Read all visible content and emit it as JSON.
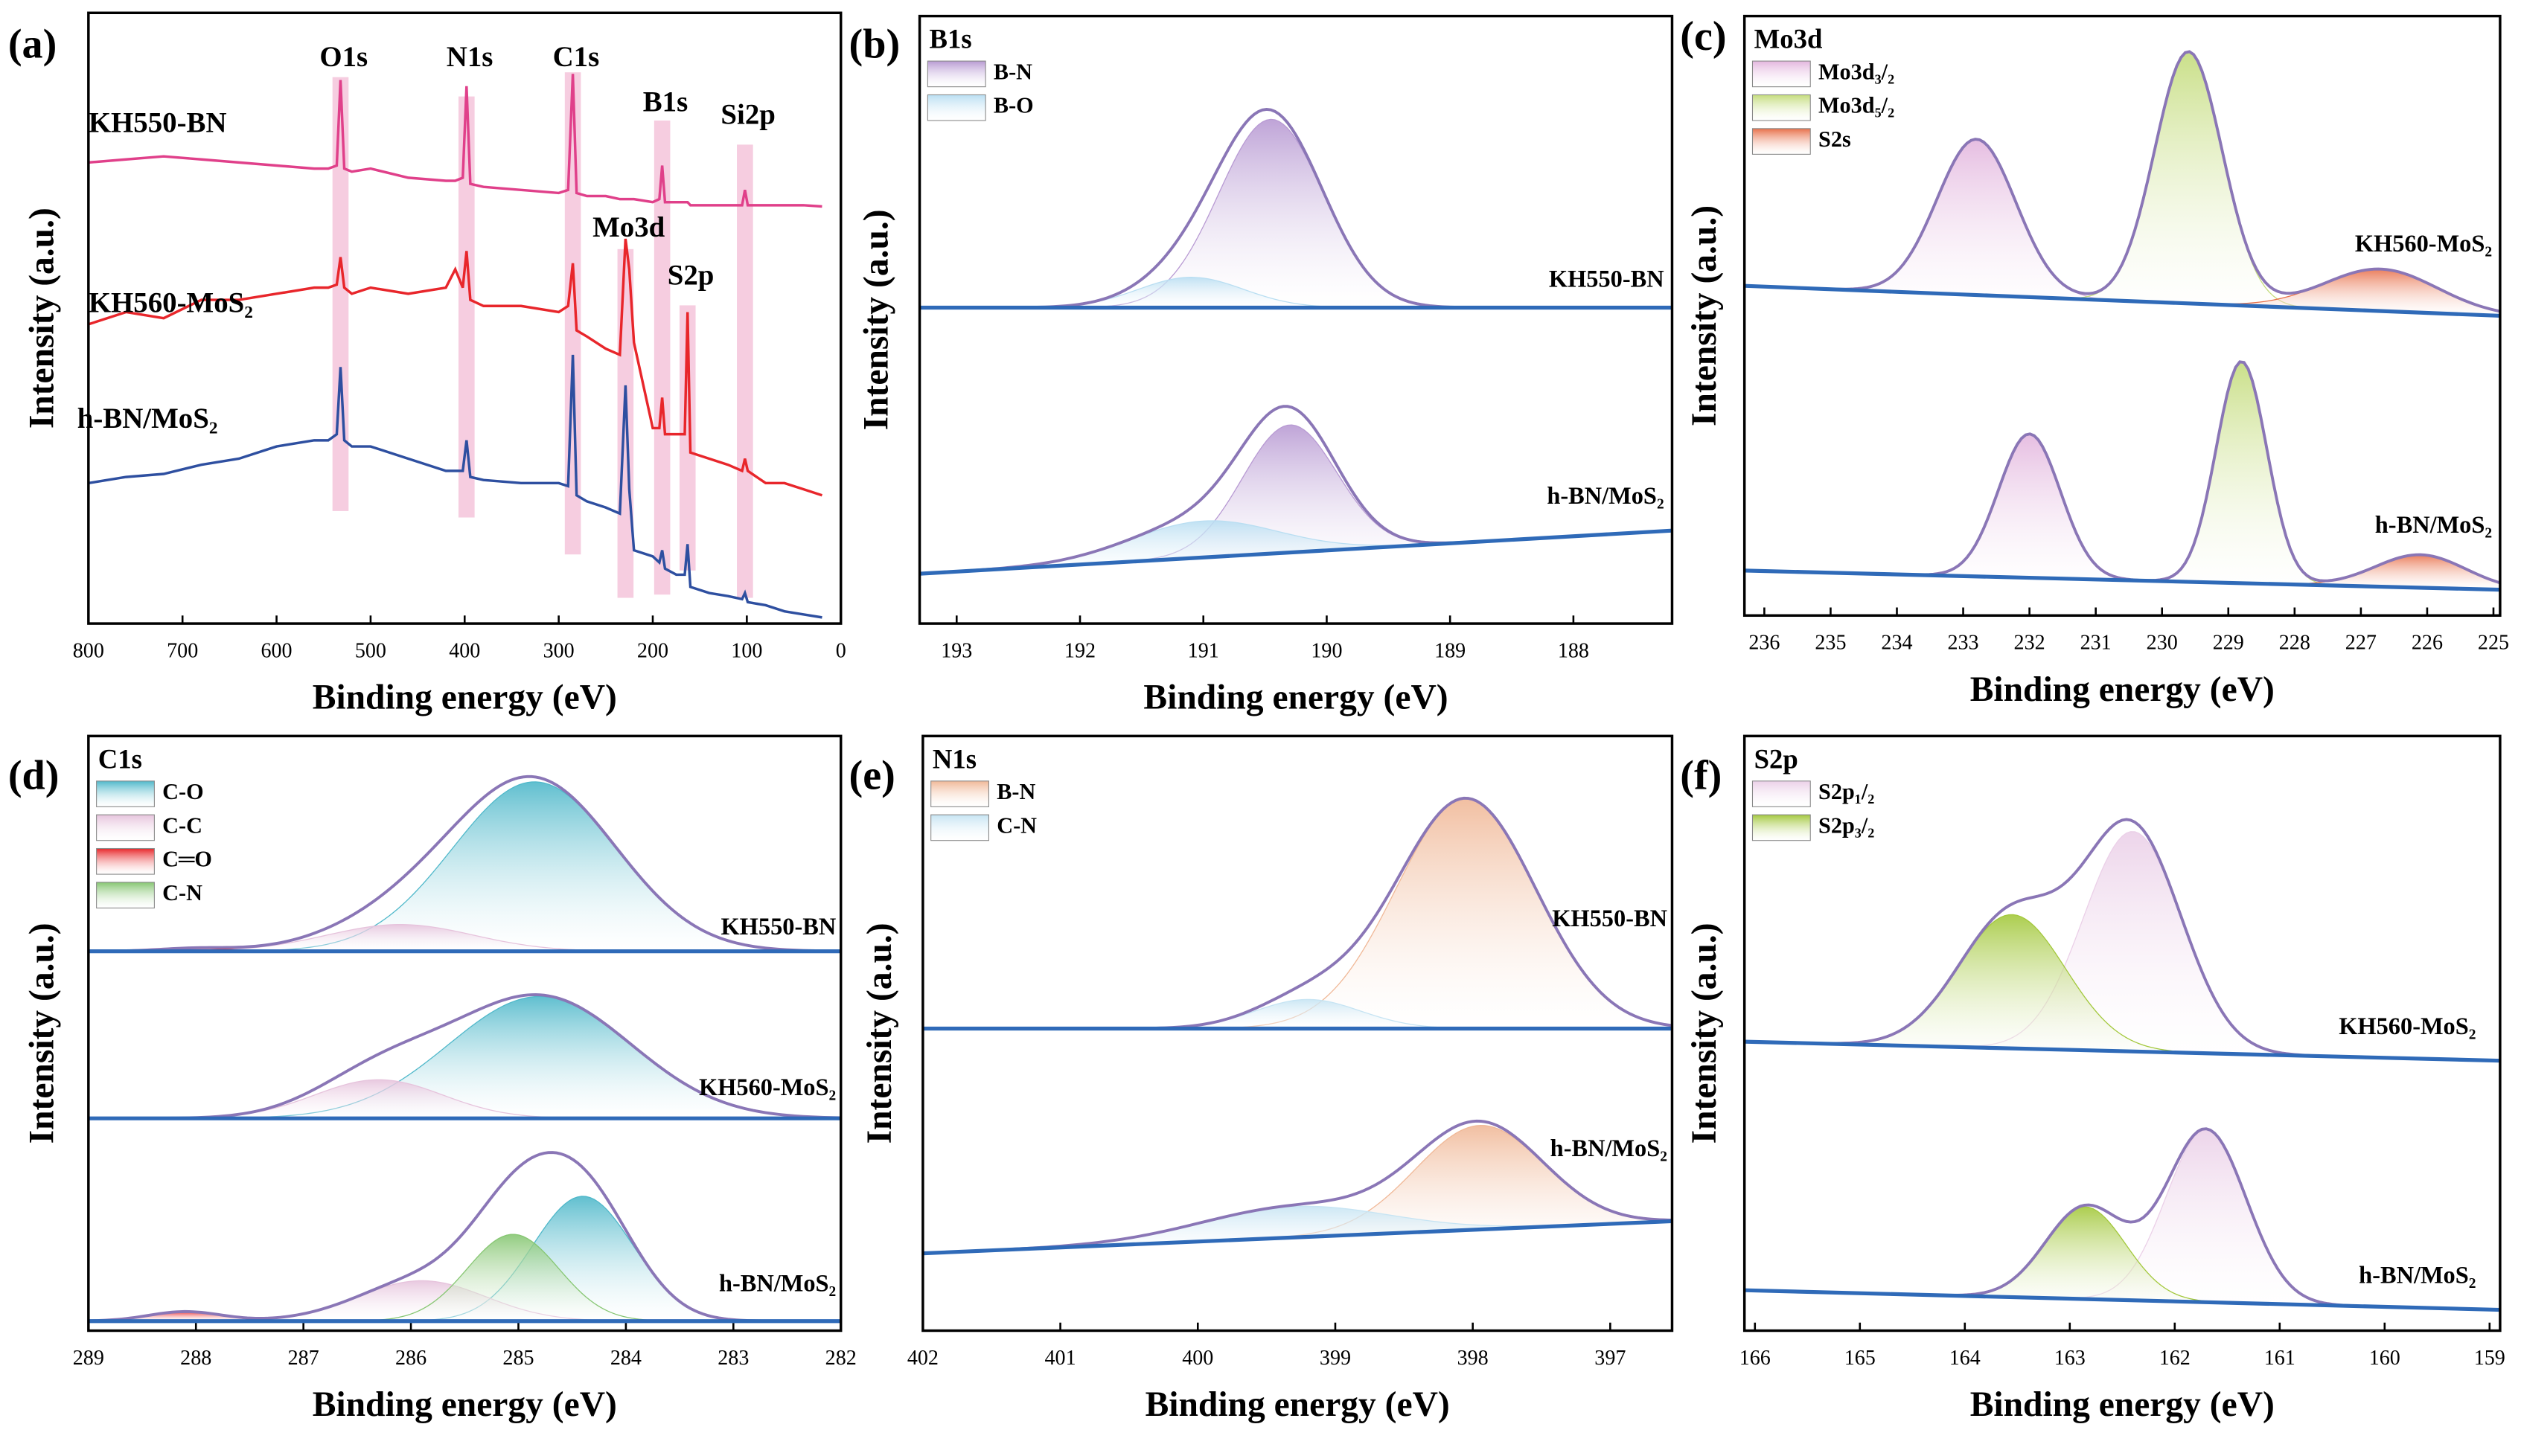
{
  "chart_data": [
    {
      "type": "survey",
      "panel_label": "(a)",
      "x_label": "Binding energy (eV)",
      "y_label": "Intensity (a.u.)",
      "xlim": [
        800,
        0
      ],
      "xticks": [
        800,
        700,
        600,
        500,
        400,
        300,
        200,
        100,
        0
      ],
      "ylim": [
        0,
        100
      ],
      "highlight_color": "#f5c4da",
      "peaks": [
        {
          "label": "O1s",
          "x": 532
        },
        {
          "label": "N1s",
          "x": 398
        },
        {
          "label": "C1s",
          "x": 285
        },
        {
          "label": "B1s",
          "x": 190
        },
        {
          "label": "Mo3d",
          "x": 229
        },
        {
          "label": "S2p",
          "x": 163
        },
        {
          "label": "Si2p",
          "x": 102
        }
      ],
      "x": [
        800,
        760,
        720,
        680,
        640,
        600,
        560,
        545,
        536,
        532,
        528,
        520,
        500,
        460,
        420,
        410,
        402,
        398,
        394,
        380,
        340,
        300,
        290,
        285,
        281,
        270,
        250,
        235,
        229,
        225,
        220,
        200,
        193,
        190,
        187,
        175,
        166,
        163,
        160,
        140,
        120,
        105,
        102,
        99,
        80,
        60,
        40,
        20
      ],
      "series": [
        {
          "name": "KH550-BN",
          "color": "#e0408a",
          "values": [
            75.5,
            76,
            76.5,
            76,
            75.5,
            75,
            74.5,
            74.5,
            75,
            89,
            74.5,
            74,
            74.5,
            73,
            72.5,
            72.5,
            73,
            88,
            72,
            71.5,
            71,
            70.5,
            71,
            90,
            70.5,
            70,
            70,
            69.5,
            69.5,
            69.5,
            69.5,
            69,
            69.5,
            75,
            69,
            69,
            69,
            69,
            68.5,
            68.5,
            68.5,
            68.5,
            71,
            68.5,
            68.5,
            68.5,
            68.5,
            68.3
          ]
        },
        {
          "name": "KH560-MoS₂",
          "color": "#e8262b",
          "values": [
            49,
            51,
            50,
            53,
            53,
            54,
            55,
            55,
            55.5,
            60,
            55,
            54,
            55,
            54,
            55,
            58,
            55,
            61,
            53,
            52,
            52,
            51,
            52,
            59,
            48,
            47,
            45,
            44,
            63,
            58,
            46,
            32,
            32,
            37,
            31,
            31,
            31,
            51,
            28,
            27,
            26,
            25,
            27,
            25,
            23,
            23,
            22,
            21
          ]
        },
        {
          "name": "h-BN/MoS₂",
          "color": "#2e4fa0",
          "values": [
            23,
            24,
            24.5,
            26,
            27,
            29,
            30,
            30,
            31,
            42,
            30,
            29,
            29,
            27,
            25,
            25,
            25,
            30,
            24,
            23.5,
            23,
            23,
            22.5,
            44,
            21,
            20,
            19,
            18,
            39,
            22,
            12,
            11,
            10,
            12,
            9,
            8,
            8,
            13,
            6,
            5,
            4.5,
            4,
            5,
            3.5,
            3,
            2,
            1.5,
            1
          ]
        }
      ]
    },
    {
      "type": "peakfit",
      "panel_label": "(b)",
      "title": "B1s",
      "x_label": "Binding energy (eV)",
      "y_label": "Intensity (a.u.)",
      "xlim": [
        193.3,
        187.2
      ],
      "xticks": [
        193,
        192,
        191,
        190,
        189,
        188
      ],
      "ylim": [
        0,
        100
      ],
      "envelope_color": "#8a76b6",
      "baseline_color": "#2f6ab8",
      "spectra": [
        {
          "label": "KH550-BN",
          "baseline": [
            52,
            52
          ]
        },
        {
          "label": "h-BN/MoS₂",
          "baseline": [
            8.2,
            15.3
          ]
        }
      ],
      "series": [
        {
          "name": "B-N",
          "color": "#b89ad3",
          "peaks": [
            {
              "center": 190.45,
              "height": 31,
              "fwhm": 1.0
            },
            {
              "center": 190.3,
              "height": 21,
              "fwhm": 0.9
            }
          ]
        },
        {
          "name": "B-O",
          "color": "#b9def2",
          "peaks": [
            {
              "center": 191.1,
              "height": 5,
              "fwhm": 1.0
            },
            {
              "center": 191.0,
              "height": 6,
              "fwhm": 1.4
            }
          ]
        }
      ]
    },
    {
      "type": "peakfit",
      "panel_label": "(c)",
      "title": "Mo3d",
      "x_label": "Binding energy (eV)",
      "y_label": "Intensity (a.u.)",
      "xlim": [
        236.3,
        224.9
      ],
      "xticks": [
        236,
        235,
        234,
        233,
        232,
        231,
        230,
        229,
        228,
        227,
        226,
        225
      ],
      "ylim": [
        0,
        100
      ],
      "envelope_color": "#8a76b6",
      "baseline_color": "#2f6ab8",
      "spectra": [
        {
          "label": "KH560-MoS₂",
          "baseline": [
            55,
            50
          ]
        },
        {
          "label": "h-BN/MoS₂",
          "baseline": [
            7.5,
            4.3
          ]
        }
      ],
      "series": [
        {
          "name": "Mo3d₃/₂",
          "color": "#e3b6de",
          "peaks": [
            {
              "center": 232.8,
              "height": 26,
              "fwhm": 1.4
            },
            {
              "center": 232.0,
              "height": 24,
              "fwhm": 1.1
            }
          ]
        },
        {
          "name": "Mo3d₅/₂",
          "color": "#c4dc7c",
          "peaks": [
            {
              "center": 229.6,
              "height": 42,
              "fwhm": 1.2
            },
            {
              "center": 228.8,
              "height": 37,
              "fwhm": 0.9
            }
          ]
        },
        {
          "name": "S2s",
          "color": "#e8704a",
          "peaks": [
            {
              "center": 226.7,
              "height": 7,
              "fwhm": 2.0
            },
            {
              "center": 226.1,
              "height": 5.5,
              "fwhm": 1.6
            }
          ]
        }
      ]
    },
    {
      "type": "peakfit",
      "panel_label": "(d)",
      "title": "C1s",
      "x_label": "Binding energy (eV)",
      "y_label": "Intensity (a.u.)",
      "xlim": [
        289,
        282
      ],
      "xticks": [
        289,
        288,
        287,
        286,
        285,
        284,
        283,
        282
      ],
      "ylim": [
        0,
        100
      ],
      "envelope_color": "#8a76b6",
      "baseline_color": "#2f6ab8",
      "spectra": [
        {
          "label": "KH550-BN",
          "baseline": [
            63.8,
            63.8
          ]
        },
        {
          "label": "KH560-MoS₂",
          "baseline": [
            35.7,
            35.7
          ]
        },
        {
          "label": "h-BN/MoS₂",
          "baseline": [
            1.6,
            1.6
          ]
        }
      ],
      "series": [
        {
          "name": "C-O",
          "color": "#4fb8ca",
          "peaks": [
            {
              "center": 284.85,
              "height": 28.5,
              "fwhm": 1.8
            },
            {
              "center": 284.8,
              "height": 20.5,
              "fwhm": 2.0
            },
            {
              "center": 284.4,
              "height": 21,
              "fwhm": 1.1
            }
          ]
        },
        {
          "name": "C-C",
          "color": "#e6c3dc",
          "peaks": [
            {
              "center": 286.1,
              "height": 4.5,
              "fwhm": 1.6
            },
            {
              "center": 286.3,
              "height": 6.5,
              "fwhm": 1.4
            },
            {
              "center": 285.9,
              "height": 6.8,
              "fwhm": 1.4
            }
          ]
        },
        {
          "name": "C═O",
          "color": "#e8272a",
          "peaks": [
            {
              "center": 288.0,
              "height": 0.5,
              "fwhm": 0.8
            },
            null,
            {
              "center": 288.1,
              "height": 1.6,
              "fwhm": 0.8
            }
          ]
        },
        {
          "name": "C-N",
          "color": "#86c672",
          "peaks": [
            null,
            null,
            {
              "center": 285.05,
              "height": 14.6,
              "fwhm": 1.0
            }
          ]
        }
      ]
    },
    {
      "type": "peakfit",
      "panel_label": "(e)",
      "title": "N1s",
      "x_label": "Binding energy (eV)",
      "y_label": "Intensity (a.u.)",
      "xlim": [
        402,
        396.55
      ],
      "xticks": [
        402,
        401,
        400,
        399,
        398,
        397
      ],
      "ylim": [
        0,
        100
      ],
      "envelope_color": "#8a76b6",
      "baseline_color": "#2f6ab8",
      "spectra": [
        {
          "label": "KH550-BN",
          "baseline": [
            50.8,
            50.8
          ]
        },
        {
          "label": "h-BN/MoS₂",
          "baseline": [
            13,
            18.4
          ]
        }
      ],
      "series": [
        {
          "name": "B-N",
          "color": "#f0b897",
          "peaks": [
            {
              "center": 398.05,
              "height": 38.7,
              "fwhm": 1.2
            },
            {
              "center": 397.95,
              "height": 17.5,
              "fwhm": 1.1
            }
          ]
        },
        {
          "name": "C-N",
          "color": "#c6e4f3",
          "peaks": [
            {
              "center": 399.2,
              "height": 4.9,
              "fwhm": 0.9
            },
            {
              "center": 399.3,
              "height": 5.2,
              "fwhm": 1.6
            }
          ]
        }
      ]
    },
    {
      "type": "peakfit",
      "panel_label": "(f)",
      "title": "S2p",
      "x_label": "Binding energy (eV)",
      "y_label": "Intensity (a.u.)",
      "xlim": [
        166.1,
        158.9
      ],
      "xticks": [
        166,
        165,
        164,
        163,
        162,
        161,
        160,
        159
      ],
      "ylim": [
        0,
        100
      ],
      "envelope_color": "#8a76b6",
      "baseline_color": "#2f6ab8",
      "spectra": [
        {
          "label": "KH560-MoS₂",
          "baseline": [
            48.6,
            45.4
          ]
        },
        {
          "label": "h-BN/MoS₂",
          "baseline": [
            6.8,
            3.5
          ]
        }
      ],
      "series": [
        {
          "name": "S2p₁/₂",
          "color": "#ebd0e8",
          "peaks": [
            {
              "center": 162.4,
              "height": 37,
              "fwhm": 1.1
            },
            {
              "center": 161.7,
              "height": 29,
              "fwhm": 0.9
            }
          ]
        },
        {
          "name": "S2p₃/₂",
          "color": "#a3c83c",
          "peaks": [
            {
              "center": 163.55,
              "height": 22.5,
              "fwhm": 1.2
            },
            {
              "center": 162.85,
              "height": 15.5,
              "fwhm": 0.9
            }
          ]
        }
      ]
    }
  ]
}
